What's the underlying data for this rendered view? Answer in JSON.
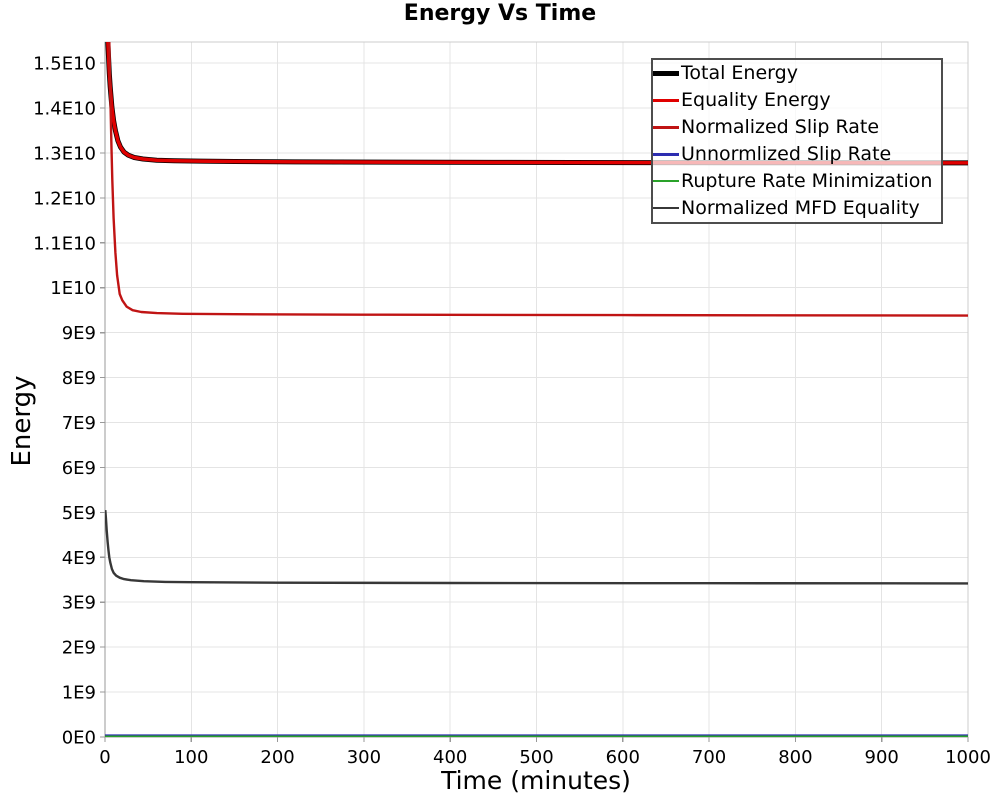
{
  "chart_data": {
    "type": "line",
    "title": "Energy Vs Time",
    "xlabel": "Time (minutes)",
    "ylabel": "Energy",
    "xlim": [
      0,
      1000
    ],
    "ylim": [
      0,
      15470000000.0
    ],
    "grid": true,
    "legend_position": "upper right",
    "x_ticks": [
      {
        "value": 0,
        "label": "0"
      },
      {
        "value": 100,
        "label": "100"
      },
      {
        "value": 200,
        "label": "200"
      },
      {
        "value": 300,
        "label": "300"
      },
      {
        "value": 400,
        "label": "400"
      },
      {
        "value": 500,
        "label": "500"
      },
      {
        "value": 600,
        "label": "600"
      },
      {
        "value": 700,
        "label": "700"
      },
      {
        "value": 800,
        "label": "800"
      },
      {
        "value": 900,
        "label": "900"
      },
      {
        "value": 1000,
        "label": "1000"
      }
    ],
    "y_ticks": [
      {
        "value": 0,
        "label": "0E0"
      },
      {
        "value": 1000000000.0,
        "label": "1E9"
      },
      {
        "value": 2000000000.0,
        "label": "2E9"
      },
      {
        "value": 3000000000.0,
        "label": "3E9"
      },
      {
        "value": 4000000000.0,
        "label": "4E9"
      },
      {
        "value": 5000000000.0,
        "label": "5E9"
      },
      {
        "value": 6000000000.0,
        "label": "6E9"
      },
      {
        "value": 7000000000.0,
        "label": "7E9"
      },
      {
        "value": 8000000000.0,
        "label": "8E9"
      },
      {
        "value": 9000000000.0,
        "label": "9E9"
      },
      {
        "value": 10000000000.0,
        "label": "1E10"
      },
      {
        "value": 11000000000.0,
        "label": "1.1E10"
      },
      {
        "value": 12000000000.0,
        "label": "1.2E10"
      },
      {
        "value": 13000000000.0,
        "label": "1.3E10"
      },
      {
        "value": 14000000000.0,
        "label": "1.4E10"
      },
      {
        "value": 15000000000.0,
        "label": "1.5E10"
      }
    ],
    "colors": {
      "gridline": "#e4e4e4",
      "plot_border": "#cccccc",
      "axis_line": "#999999",
      "legend_border": "#4d4d4d"
    },
    "series": [
      {
        "name": "Total Energy",
        "color": "#000000",
        "width": 5,
        "points": [
          [
            1.5,
            17000000000.0
          ],
          [
            3,
            15600000000.0
          ],
          [
            4,
            15150000000.0
          ],
          [
            5,
            14770000000.0
          ],
          [
            6,
            14470000000.0
          ],
          [
            8,
            14020000000.0
          ],
          [
            10,
            13720000000.0
          ],
          [
            12,
            13500000000.0
          ],
          [
            15,
            13270000000.0
          ],
          [
            18,
            13130000000.0
          ],
          [
            22,
            13020000000.0
          ],
          [
            27,
            12950000000.0
          ],
          [
            34,
            12900000000.0
          ],
          [
            44,
            12865000000.0
          ],
          [
            60,
            12840000000.0
          ],
          [
            80,
            12828000000.0
          ],
          [
            110,
            12818000000.0
          ],
          [
            150,
            12810000000.0
          ],
          [
            220,
            12802000000.0
          ],
          [
            320,
            12796000000.0
          ],
          [
            450,
            12790000000.0
          ],
          [
            620,
            12785000000.0
          ],
          [
            800,
            12782000000.0
          ],
          [
            1000,
            12780000000.0
          ]
        ]
      },
      {
        "name": "Equality Energy",
        "color": "#e00000",
        "width": 3.5,
        "points": [
          [
            1.5,
            17000000000.0
          ],
          [
            3,
            15600000000.0
          ],
          [
            4,
            15150000000.0
          ],
          [
            5,
            14770000000.0
          ],
          [
            6,
            14470000000.0
          ],
          [
            8,
            14020000000.0
          ],
          [
            10,
            13720000000.0
          ],
          [
            12,
            13500000000.0
          ],
          [
            15,
            13270000000.0
          ],
          [
            18,
            13130000000.0
          ],
          [
            22,
            13020000000.0
          ],
          [
            27,
            12950000000.0
          ],
          [
            34,
            12900000000.0
          ],
          [
            44,
            12865000000.0
          ],
          [
            60,
            12840000000.0
          ],
          [
            80,
            12828000000.0
          ],
          [
            110,
            12818000000.0
          ],
          [
            150,
            12810000000.0
          ],
          [
            220,
            12802000000.0
          ],
          [
            320,
            12796000000.0
          ],
          [
            450,
            12790000000.0
          ],
          [
            620,
            12785000000.0
          ],
          [
            800,
            12782000000.0
          ],
          [
            1000,
            12780000000.0
          ]
        ]
      },
      {
        "name": "Normalized Slip Rate",
        "color": "#c01414",
        "width": 2.4,
        "points": [
          [
            4,
            16500000000.0
          ],
          [
            5.5,
            15000000000.0
          ],
          [
            6.5,
            14000000000.0
          ],
          [
            7.5,
            13100000000.0
          ],
          [
            8.5,
            12400000000.0
          ],
          [
            10,
            11550000000.0
          ],
          [
            12,
            10780000000.0
          ],
          [
            14,
            10280000000.0
          ],
          [
            17,
            9860000000.0
          ],
          [
            20,
            9720000000.0
          ],
          [
            25,
            9580000000.0
          ],
          [
            32,
            9500000000.0
          ],
          [
            42,
            9460000000.0
          ],
          [
            60,
            9435000000.0
          ],
          [
            90,
            9420000000.0
          ],
          [
            150,
            9410000000.0
          ],
          [
            300,
            9400000000.0
          ],
          [
            600,
            9390000000.0
          ],
          [
            1000,
            9380000000.0
          ]
        ]
      },
      {
        "name": "Unnormlized Slip Rate",
        "color": "#2d2db0",
        "width": 2,
        "points": [
          [
            0,
            35000000.0
          ],
          [
            1000,
            35000000.0
          ]
        ]
      },
      {
        "name": "Rupture Rate Minimization",
        "color": "#2aa22a",
        "width": 2.2,
        "points": [
          [
            0,
            8000000.0
          ],
          [
            1000,
            8000000.0
          ]
        ]
      },
      {
        "name": "Normalized MFD Equality",
        "color": "#373737",
        "width": 2.4,
        "points": [
          [
            0.3,
            5050000000.0
          ],
          [
            1,
            4880000000.0
          ],
          [
            2,
            4600000000.0
          ],
          [
            3,
            4350000000.0
          ],
          [
            4,
            4150000000.0
          ],
          [
            5,
            4000000000.0
          ],
          [
            6,
            3890000000.0
          ],
          [
            8,
            3740000000.0
          ],
          [
            10,
            3655000000.0
          ],
          [
            13,
            3590000000.0
          ],
          [
            17,
            3545000000.0
          ],
          [
            22,
            3515000000.0
          ],
          [
            30,
            3490000000.0
          ],
          [
            45,
            3468000000.0
          ],
          [
            70,
            3452000000.0
          ],
          [
            100,
            3445000000.0
          ],
          [
            200,
            3435000000.0
          ],
          [
            400,
            3428000000.0
          ],
          [
            700,
            3423000000.0
          ],
          [
            1000,
            3420000000.0
          ]
        ]
      }
    ]
  }
}
